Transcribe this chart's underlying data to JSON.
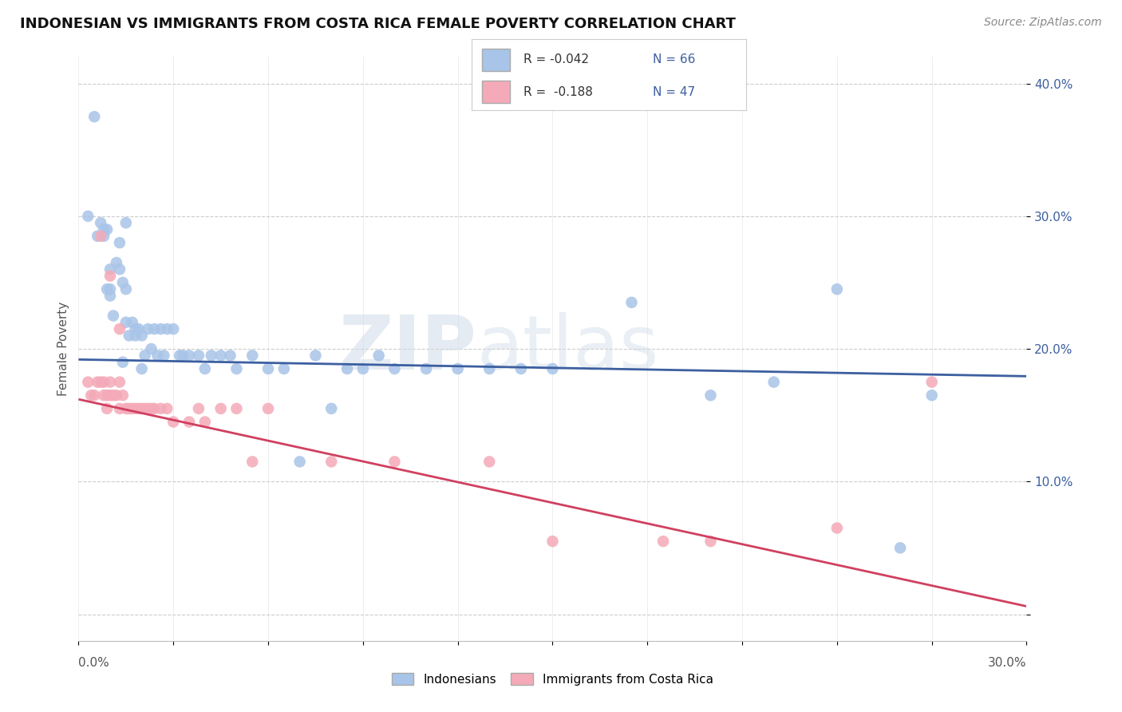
{
  "title": "INDONESIAN VS IMMIGRANTS FROM COSTA RICA FEMALE POVERTY CORRELATION CHART",
  "source": "Source: ZipAtlas.com",
  "ylabel": "Female Poverty",
  "xlim": [
    0.0,
    0.3
  ],
  "ylim": [
    -0.02,
    0.42
  ],
  "yticks": [
    0.0,
    0.1,
    0.2,
    0.3,
    0.4
  ],
  "ytick_labels": [
    "",
    "10.0%",
    "20.0%",
    "30.0%",
    "40.0%"
  ],
  "blue_color": "#a8c4e8",
  "pink_color": "#f4aab8",
  "blue_line_color": "#3c5fa0",
  "pink_line_color": "#d04060",
  "watermark_zip": "ZIP",
  "watermark_atlas": "atlas",
  "blue_intercept": 0.192,
  "blue_slope": -0.042,
  "pink_intercept": 0.162,
  "pink_slope": -0.52,
  "indonesian_x": [
    0.003,
    0.005,
    0.006,
    0.007,
    0.008,
    0.009,
    0.009,
    0.01,
    0.01,
    0.01,
    0.011,
    0.012,
    0.013,
    0.013,
    0.014,
    0.015,
    0.015,
    0.016,
    0.017,
    0.018,
    0.018,
    0.019,
    0.02,
    0.021,
    0.022,
    0.023,
    0.024,
    0.025,
    0.026,
    0.027,
    0.028,
    0.03,
    0.032,
    0.033,
    0.035,
    0.038,
    0.04,
    0.042,
    0.045,
    0.048,
    0.05,
    0.055,
    0.06,
    0.065,
    0.07,
    0.075,
    0.08,
    0.085,
    0.09,
    0.095,
    0.1,
    0.11,
    0.12,
    0.13,
    0.14,
    0.15,
    0.175,
    0.2,
    0.22,
    0.24,
    0.26,
    0.27,
    0.008,
    0.014,
    0.015,
    0.02
  ],
  "indonesian_y": [
    0.3,
    0.375,
    0.285,
    0.295,
    0.29,
    0.29,
    0.245,
    0.26,
    0.245,
    0.24,
    0.225,
    0.265,
    0.28,
    0.26,
    0.25,
    0.245,
    0.22,
    0.21,
    0.22,
    0.215,
    0.21,
    0.215,
    0.21,
    0.195,
    0.215,
    0.2,
    0.215,
    0.195,
    0.215,
    0.195,
    0.215,
    0.215,
    0.195,
    0.195,
    0.195,
    0.195,
    0.185,
    0.195,
    0.195,
    0.195,
    0.185,
    0.195,
    0.185,
    0.185,
    0.115,
    0.195,
    0.155,
    0.185,
    0.185,
    0.195,
    0.185,
    0.185,
    0.185,
    0.185,
    0.185,
    0.185,
    0.235,
    0.165,
    0.175,
    0.245,
    0.05,
    0.165,
    0.285,
    0.19,
    0.295,
    0.185
  ],
  "costarica_x": [
    0.003,
    0.004,
    0.005,
    0.006,
    0.007,
    0.008,
    0.008,
    0.009,
    0.009,
    0.01,
    0.01,
    0.011,
    0.012,
    0.013,
    0.013,
    0.014,
    0.015,
    0.016,
    0.017,
    0.018,
    0.019,
    0.02,
    0.021,
    0.022,
    0.023,
    0.024,
    0.026,
    0.028,
    0.03,
    0.035,
    0.038,
    0.04,
    0.045,
    0.05,
    0.055,
    0.06,
    0.08,
    0.1,
    0.13,
    0.15,
    0.185,
    0.2,
    0.24,
    0.27,
    0.007,
    0.01,
    0.013
  ],
  "costarica_y": [
    0.175,
    0.165,
    0.165,
    0.175,
    0.175,
    0.165,
    0.175,
    0.165,
    0.155,
    0.165,
    0.175,
    0.165,
    0.165,
    0.175,
    0.155,
    0.165,
    0.155,
    0.155,
    0.155,
    0.155,
    0.155,
    0.155,
    0.155,
    0.155,
    0.155,
    0.155,
    0.155,
    0.155,
    0.145,
    0.145,
    0.155,
    0.145,
    0.155,
    0.155,
    0.115,
    0.155,
    0.115,
    0.115,
    0.115,
    0.055,
    0.055,
    0.055,
    0.065,
    0.175,
    0.285,
    0.255,
    0.215
  ]
}
